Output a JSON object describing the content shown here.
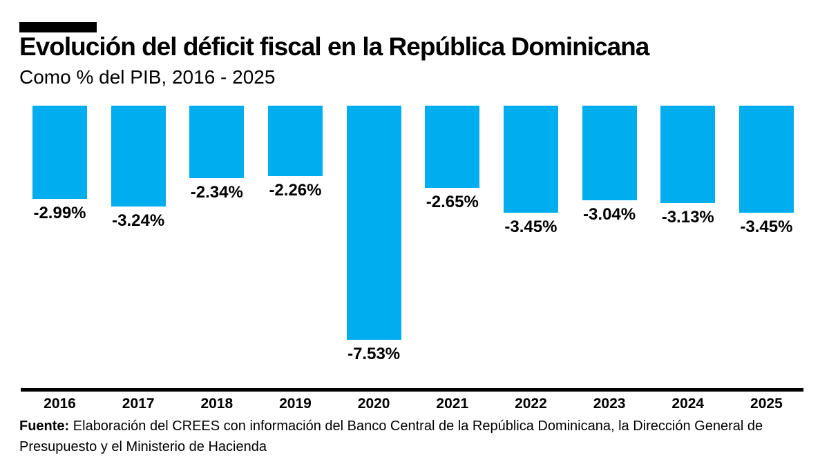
{
  "chart_data": {
    "type": "bar",
    "title": "Evolución del déficit fiscal en la República Dominicana",
    "subtitle": "Como % del PIB, 2016 - 2025",
    "categories": [
      "2016",
      "2017",
      "2018",
      "2019",
      "2020",
      "2021",
      "2022",
      "2023",
      "2024",
      "2025"
    ],
    "values": [
      -2.99,
      -3.24,
      -2.34,
      -2.26,
      -7.53,
      -2.65,
      -3.45,
      -3.04,
      -3.13,
      -3.45
    ],
    "labels": [
      "-2.99%",
      "-3.24%",
      "-2.34%",
      "-2.26%",
      "-7.53%",
      "-2.65%",
      "-3.45%",
      "-3.04%",
      "-3.13%",
      "-3.45%"
    ],
    "xlabel": "",
    "ylabel": "",
    "ylim": [
      -8,
      0
    ],
    "orientation": "bars-hang-down-from-zero-baseline",
    "grid": false,
    "legend": false,
    "bar_color": "#00AEEF",
    "text_color": "#000000",
    "accent_color": "#000000"
  },
  "source": {
    "label": "Fuente:",
    "line1": "Elaboración del CREES con información del Banco Central de la República Dominicana, la Dirección General de",
    "line2": "Presupuesto y el Ministerio de Hacienda"
  }
}
